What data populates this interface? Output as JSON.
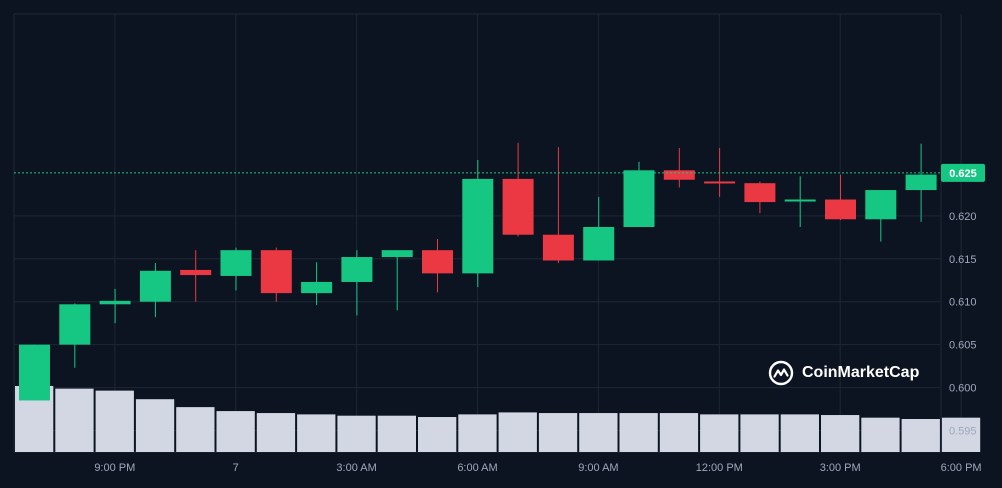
{
  "brand": {
    "name": "CoinMarketCap"
  },
  "colors": {
    "background": "#0d1421",
    "grid": "#1e2636",
    "up": "#16c784",
    "down": "#ea3943",
    "volume": "#d2d7e3",
    "axis_text": "#a1a7bb",
    "price_line": "#16c784"
  },
  "chart_data": {
    "type": "candlestick",
    "title": "",
    "xlabel": "",
    "ylabel": "",
    "ylim": [
      0.5925,
      0.6435
    ],
    "y_ticks": [
      "0.595",
      "0.600",
      "0.605",
      "0.610",
      "0.615",
      "0.620"
    ],
    "y_tick_values": [
      0.595,
      0.6,
      0.605,
      0.61,
      0.615,
      0.62
    ],
    "current_price": 0.625,
    "current_price_label": "0.625",
    "x_ticks": [
      {
        "label": "9:00 PM",
        "index": 1
      },
      {
        "label": "7",
        "index": 4
      },
      {
        "label": "3:00 AM",
        "index": 7
      },
      {
        "label": "6:00 AM",
        "index": 10
      },
      {
        "label": "9:00 AM",
        "index": 13
      },
      {
        "label": "12:00 PM",
        "index": 16
      },
      {
        "label": "3:00 PM",
        "index": 19
      },
      {
        "label": "6:00 PM",
        "index": 22
      }
    ],
    "candles": [
      {
        "open": 0.5985,
        "high": 0.605,
        "low": 0.5985,
        "close": 0.605
      },
      {
        "open": 0.605,
        "high": 0.6098,
        "low": 0.6023,
        "close": 0.6097
      },
      {
        "open": 0.6097,
        "high": 0.6115,
        "low": 0.6075,
        "close": 0.6101
      },
      {
        "open": 0.61,
        "high": 0.6145,
        "low": 0.6082,
        "close": 0.6136
      },
      {
        "open": 0.6137,
        "high": 0.616,
        "low": 0.61,
        "close": 0.6131
      },
      {
        "open": 0.613,
        "high": 0.6163,
        "low": 0.6113,
        "close": 0.616
      },
      {
        "open": 0.616,
        "high": 0.6163,
        "low": 0.61,
        "close": 0.611
      },
      {
        "open": 0.611,
        "high": 0.6146,
        "low": 0.6096,
        "close": 0.6123
      },
      {
        "open": 0.6123,
        "high": 0.616,
        "low": 0.6084,
        "close": 0.6152
      },
      {
        "open": 0.6152,
        "high": 0.616,
        "low": 0.609,
        "close": 0.616
      },
      {
        "open": 0.616,
        "high": 0.6173,
        "low": 0.6111,
        "close": 0.6133
      },
      {
        "open": 0.6133,
        "high": 0.6265,
        "low": 0.6117,
        "close": 0.6243
      },
      {
        "open": 0.6243,
        "high": 0.6285,
        "low": 0.6176,
        "close": 0.6178
      },
      {
        "open": 0.6178,
        "high": 0.628,
        "low": 0.6145,
        "close": 0.6148
      },
      {
        "open": 0.6148,
        "high": 0.6222,
        "low": 0.6148,
        "close": 0.6187
      },
      {
        "open": 0.6187,
        "high": 0.6263,
        "low": 0.6187,
        "close": 0.6253
      },
      {
        "open": 0.6253,
        "high": 0.6279,
        "low": 0.6233,
        "close": 0.6242
      },
      {
        "open": 0.624,
        "high": 0.6279,
        "low": 0.6222,
        "close": 0.6238
      },
      {
        "open": 0.6238,
        "high": 0.624,
        "low": 0.6203,
        "close": 0.6216
      },
      {
        "open": 0.6217,
        "high": 0.6246,
        "low": 0.6187,
        "close": 0.6219
      },
      {
        "open": 0.6219,
        "high": 0.6248,
        "low": 0.6195,
        "close": 0.6196
      },
      {
        "open": 0.6196,
        "high": 0.623,
        "low": 0.617,
        "close": 0.623
      },
      {
        "open": 0.623,
        "high": 0.6284,
        "low": 0.6193,
        "close": 0.6248
      }
    ],
    "volume": [
      1.0,
      0.96,
      0.93,
      0.8,
      0.68,
      0.62,
      0.59,
      0.57,
      0.55,
      0.55,
      0.53,
      0.57,
      0.6,
      0.59,
      0.59,
      0.59,
      0.59,
      0.57,
      0.57,
      0.57,
      0.56,
      0.52,
      0.5,
      0.52
    ]
  }
}
